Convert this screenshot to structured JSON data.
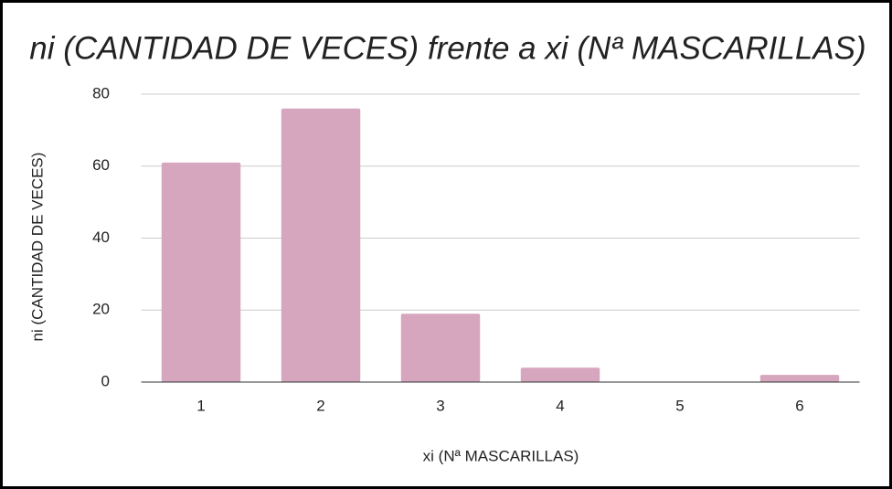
{
  "chart_data": {
    "type": "bar",
    "title": "ni (CANTIDAD DE VECES) frente a xi (Nª MASCARILLAS)",
    "x_label": "xi (Nª MASCARILLAS)",
    "y_label": "ni (CANTIDAD DE VECES)",
    "categories": [
      "1",
      "2",
      "3",
      "4",
      "5",
      "6"
    ],
    "values": [
      61,
      76,
      19,
      4,
      0,
      2
    ],
    "color": "#d5a6bd",
    "ylim": [
      0,
      80
    ],
    "yticks": [
      0,
      20,
      40,
      60,
      80
    ],
    "grid": true
  }
}
